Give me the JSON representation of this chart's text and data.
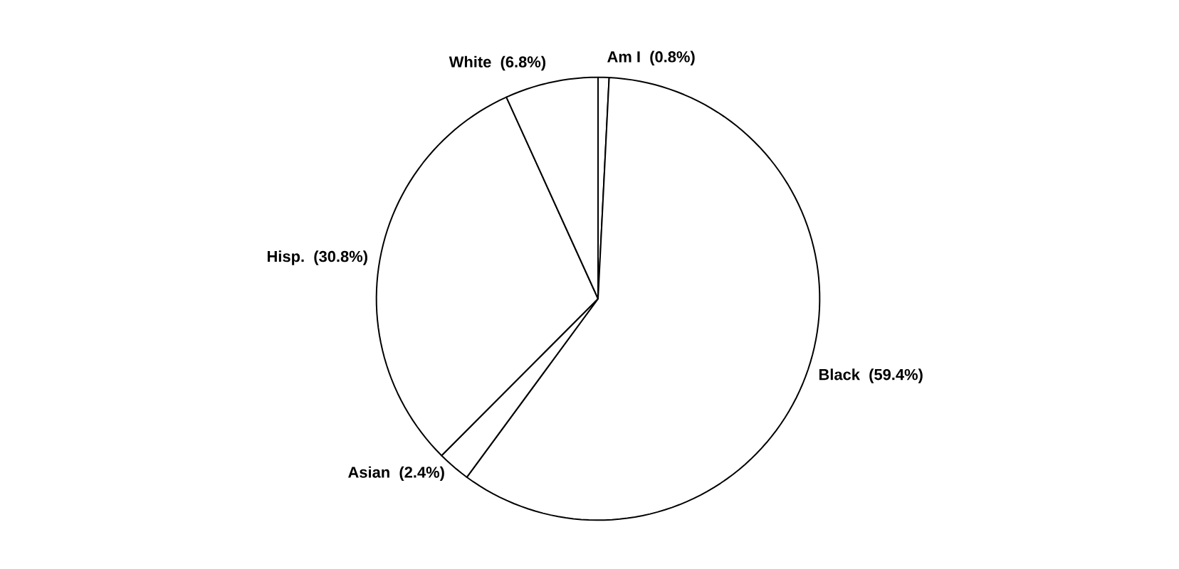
{
  "chart_data": {
    "type": "pie",
    "categories": [
      "Am I",
      "Black",
      "Asian",
      "Hisp.",
      "White"
    ],
    "values": [
      0.8,
      59.4,
      2.4,
      30.8,
      6.8
    ],
    "value_labels": [
      "(0.8%)",
      "(59.4%)",
      "(2.4%)",
      "(30.8%)",
      "(6.8%)"
    ],
    "colors": [
      "#ffffff",
      "#ffffff",
      "#ffffff",
      "#ffffff",
      "#ffffff"
    ]
  }
}
